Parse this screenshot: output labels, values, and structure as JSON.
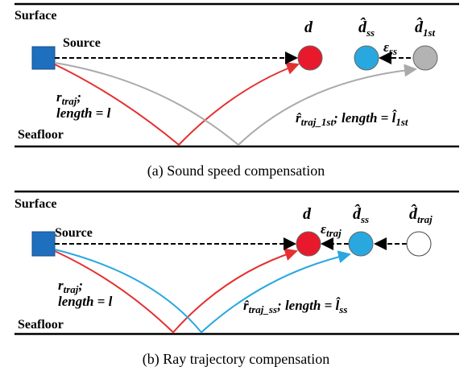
{
  "panels": [
    {
      "surface": "Surface",
      "source": "Source",
      "seafloor": "Seafloor",
      "caption": "(a) Sound speed compensation",
      "d": "d",
      "d_ss": {
        "base": "d̂",
        "sub": "ss"
      },
      "d_third": {
        "base": "d̂",
        "sub": "1st"
      },
      "epsilon": {
        "base": "ε",
        "sub": "ss"
      },
      "traj": {
        "symbol": "r",
        "sub": "traj",
        "rest": ";"
      },
      "length": "length = l",
      "est": {
        "symbol": "r̂",
        "sub": "traj_1st",
        "mid": "; length = ",
        "symbol2": "l̂",
        "sub2": "1st"
      }
    },
    {
      "surface": "Surface",
      "source": "Source",
      "seafloor": "Seafloor",
      "caption": "(b) Ray trajectory compensation",
      "d": "d",
      "d_ss": {
        "base": "d̂",
        "sub": "ss"
      },
      "d_third": {
        "base": "d̂",
        "sub": "traj"
      },
      "epsilon": {
        "base": "ε",
        "sub": "traj"
      },
      "traj": {
        "symbol": "r",
        "sub": "traj",
        "rest": ";"
      },
      "length": "length = l",
      "est": {
        "symbol": "r̂",
        "sub": "traj_ss",
        "mid": "; length = ",
        "symbol2": "l̂",
        "sub2": "ss"
      }
    }
  ]
}
